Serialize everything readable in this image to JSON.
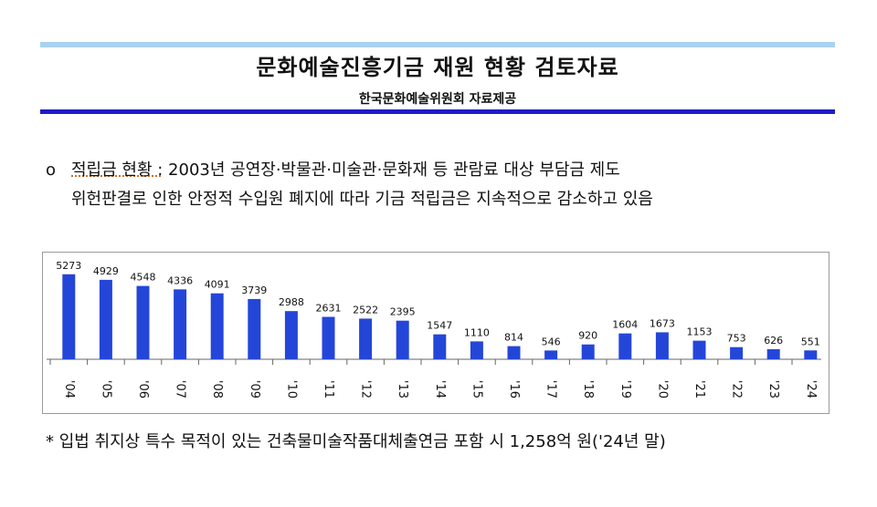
{
  "header": {
    "title": "문화예술진흥기금 재원 현황 검토자료",
    "subtitle": "한국문화예술위원회 자료제공"
  },
  "bullet": {
    "mark": "o",
    "label": "적립금 현황 :",
    "line1_rest": "2003년 공연장·박물관·미술관·문화재 등 관람료 대상 부담금 제도",
    "line2": "위헌판결로 인한 안정적 수입원 폐지에 따라 기금 적립금은 지속적으로 감소하고 있음"
  },
  "chart_data": {
    "type": "bar",
    "categories": [
      "'04",
      "'05",
      "'06",
      "'07",
      "'08",
      "'09",
      "'10",
      "'11",
      "'12",
      "'13",
      "'14",
      "'15",
      "'16",
      "'17",
      "'18",
      "'19",
      "'20",
      "'21",
      "'22",
      "'23",
      "'24"
    ],
    "values": [
      5273,
      4929,
      4548,
      4336,
      4091,
      3739,
      2988,
      2631,
      2522,
      2395,
      1547,
      1110,
      814,
      546,
      920,
      1604,
      1673,
      1153,
      753,
      626,
      551
    ],
    "bar_color": "#2446d8",
    "ylim": [
      0,
      5600
    ],
    "grid": false
  },
  "footnote": "*  입법 취지상 특수 목적이 있는 건축물미술작품대체출연금 포함 시 1,258억 원('24년 말)"
}
